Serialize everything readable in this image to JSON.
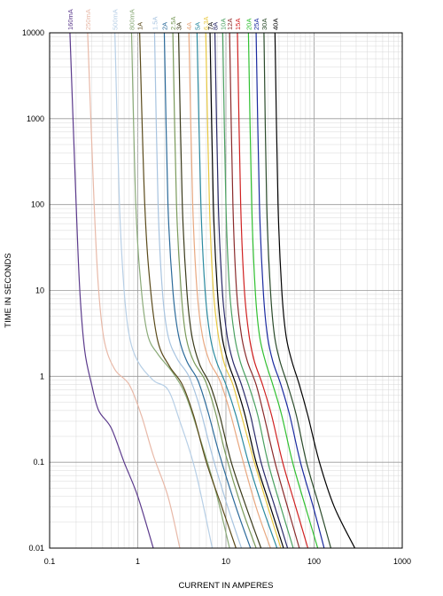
{
  "chart_data": {
    "type": "line",
    "xlabel": "CURRENT IN AMPERES",
    "ylabel": "TIME IN SECONDS",
    "x_scale": "log",
    "y_scale": "log",
    "xlim": [
      0.1,
      1000
    ],
    "ylim": [
      0.01,
      10000
    ],
    "x_ticks": [
      "0.1",
      "1",
      "10",
      "100",
      "1000"
    ],
    "y_ticks": [
      "0.01",
      "0.1",
      "1",
      "10",
      "100",
      "1000",
      "10000"
    ],
    "grid": true,
    "legend": "series labels along top edge",
    "series": [
      {
        "name": "160mA",
        "color": "#5b3a8c",
        "points": [
          [
            0.17,
            10000
          ],
          [
            0.2,
            100
          ],
          [
            0.22,
            10
          ],
          [
            0.25,
            2
          ],
          [
            0.3,
            0.8
          ],
          [
            0.36,
            0.4
          ],
          [
            0.5,
            0.25
          ],
          [
            0.7,
            0.1
          ],
          [
            1.0,
            0.04
          ],
          [
            1.5,
            0.01
          ]
        ]
      },
      {
        "name": "250mA",
        "color": "#e8b9a8",
        "points": [
          [
            0.27,
            10000
          ],
          [
            0.32,
            100
          ],
          [
            0.36,
            10
          ],
          [
            0.42,
            2.5
          ],
          [
            0.55,
            1.2
          ],
          [
            0.8,
            0.8
          ],
          [
            1.1,
            0.35
          ],
          [
            1.5,
            0.12
          ],
          [
            2.2,
            0.04
          ],
          [
            3.0,
            0.01
          ]
        ]
      },
      {
        "name": "500mA",
        "color": "#b7cfe6",
        "points": [
          [
            0.55,
            10000
          ],
          [
            0.62,
            100
          ],
          [
            0.7,
            10
          ],
          [
            0.8,
            3
          ],
          [
            1.0,
            1.5
          ],
          [
            1.5,
            0.9
          ],
          [
            2.2,
            0.7
          ],
          [
            3.0,
            0.3
          ],
          [
            4.5,
            0.08
          ],
          [
            7.0,
            0.01
          ]
        ]
      },
      {
        "name": "800mA",
        "color": "#8aaa78",
        "points": [
          [
            0.85,
            10000
          ],
          [
            0.95,
            100
          ],
          [
            1.1,
            10
          ],
          [
            1.3,
            3
          ],
          [
            1.7,
            1.8
          ],
          [
            2.5,
            1.1
          ],
          [
            3.5,
            0.6
          ],
          [
            5.0,
            0.2
          ],
          [
            7.5,
            0.05
          ],
          [
            11.0,
            0.01
          ]
        ]
      },
      {
        "name": "1A",
        "color": "#5a4a1a",
        "points": [
          [
            1.05,
            10000
          ],
          [
            1.2,
            100
          ],
          [
            1.4,
            10
          ],
          [
            1.7,
            2.5
          ],
          [
            2.3,
            1.3
          ],
          [
            3.2,
            0.8
          ],
          [
            4.3,
            0.35
          ],
          [
            6.0,
            0.1
          ],
          [
            9.0,
            0.03
          ],
          [
            13.0,
            0.01
          ]
        ]
      },
      {
        "name": "1.5A",
        "color": "#a8c4e0",
        "points": [
          [
            1.55,
            10000
          ],
          [
            1.7,
            100
          ],
          [
            1.9,
            10
          ],
          [
            2.2,
            3
          ],
          [
            2.8,
            1.6
          ],
          [
            3.8,
            1.0
          ],
          [
            5.0,
            0.45
          ],
          [
            7.0,
            0.12
          ],
          [
            10.5,
            0.03
          ],
          [
            15.0,
            0.01
          ]
        ]
      },
      {
        "name": "2A",
        "color": "#2b6a9a",
        "points": [
          [
            2.0,
            10000
          ],
          [
            2.2,
            100
          ],
          [
            2.5,
            10
          ],
          [
            2.9,
            3
          ],
          [
            3.6,
            1.5
          ],
          [
            4.8,
            0.9
          ],
          [
            6.2,
            0.4
          ],
          [
            8.5,
            0.12
          ],
          [
            13.0,
            0.03
          ],
          [
            19.0,
            0.01
          ]
        ]
      },
      {
        "name": "2.5A",
        "color": "#7a9a5a",
        "points": [
          [
            2.5,
            10000
          ],
          [
            2.75,
            100
          ],
          [
            3.1,
            10
          ],
          [
            3.5,
            3
          ],
          [
            4.3,
            1.5
          ],
          [
            5.8,
            0.9
          ],
          [
            7.5,
            0.4
          ],
          [
            10.0,
            0.12
          ],
          [
            15.0,
            0.03
          ],
          [
            22.0,
            0.01
          ]
        ]
      },
      {
        "name": "3A",
        "color": "#3a3a1a",
        "points": [
          [
            2.9,
            10000
          ],
          [
            3.2,
            100
          ],
          [
            3.6,
            10
          ],
          [
            4.1,
            3
          ],
          [
            5.0,
            1.4
          ],
          [
            6.6,
            0.8
          ],
          [
            8.5,
            0.35
          ],
          [
            11.5,
            0.1
          ],
          [
            17.0,
            0.03
          ],
          [
            25.0,
            0.01
          ]
        ]
      },
      {
        "name": "4A",
        "color": "#e8a880",
        "points": [
          [
            3.8,
            10000
          ],
          [
            4.2,
            100
          ],
          [
            4.7,
            10
          ],
          [
            5.4,
            3
          ],
          [
            6.5,
            1.5
          ],
          [
            8.5,
            0.9
          ],
          [
            11.0,
            0.4
          ],
          [
            15.0,
            0.12
          ],
          [
            22.0,
            0.03
          ],
          [
            32.0,
            0.01
          ]
        ]
      },
      {
        "name": "5A",
        "color": "#2a8aa0",
        "points": [
          [
            4.7,
            10000
          ],
          [
            5.2,
            100
          ],
          [
            5.8,
            10
          ],
          [
            6.6,
            3
          ],
          [
            7.8,
            1.5
          ],
          [
            10.0,
            0.8
          ],
          [
            13.0,
            0.35
          ],
          [
            18.0,
            0.1
          ],
          [
            26.0,
            0.03
          ],
          [
            38.0,
            0.01
          ]
        ]
      },
      {
        "name": "6.3A",
        "color": "#e8c840",
        "points": [
          [
            5.9,
            10000
          ],
          [
            6.5,
            100
          ],
          [
            7.2,
            10
          ],
          [
            8.2,
            3
          ],
          [
            9.6,
            1.4
          ],
          [
            12.0,
            0.8
          ],
          [
            15.0,
            0.35
          ],
          [
            21.0,
            0.1
          ],
          [
            30.0,
            0.03
          ],
          [
            42.0,
            0.01
          ]
        ]
      },
      {
        "name": "7A",
        "color": "#000000",
        "points": [
          [
            6.6,
            10000
          ],
          [
            7.2,
            100
          ],
          [
            8.0,
            10
          ],
          [
            9.0,
            3
          ],
          [
            10.5,
            1.5
          ],
          [
            13.0,
            0.8
          ],
          [
            16.5,
            0.35
          ],
          [
            22.0,
            0.1
          ],
          [
            32.0,
            0.03
          ],
          [
            45.0,
            0.01
          ]
        ]
      },
      {
        "name": "8A",
        "color": "#2a2a6a",
        "points": [
          [
            7.5,
            10000
          ],
          [
            8.2,
            100
          ],
          [
            9.1,
            10
          ],
          [
            10.3,
            3
          ],
          [
            12.0,
            1.5
          ],
          [
            15.0,
            0.8
          ],
          [
            19.0,
            0.35
          ],
          [
            25.0,
            0.1
          ],
          [
            36.0,
            0.03
          ],
          [
            50.0,
            0.01
          ]
        ]
      },
      {
        "name": "10A",
        "color": "#4aa060",
        "points": [
          [
            9.2,
            10000
          ],
          [
            10.0,
            100
          ],
          [
            11.0,
            10
          ],
          [
            12.5,
            3
          ],
          [
            14.5,
            1.5
          ],
          [
            18.0,
            0.8
          ],
          [
            23.0,
            0.35
          ],
          [
            30.0,
            0.1
          ],
          [
            42.0,
            0.03
          ],
          [
            58.0,
            0.01
          ]
        ]
      },
      {
        "name": "12A",
        "color": "#8a2a2a",
        "points": [
          [
            11.0,
            10000
          ],
          [
            12.0,
            100
          ],
          [
            13.2,
            10
          ],
          [
            15.0,
            3
          ],
          [
            17.5,
            1.5
          ],
          [
            22.0,
            0.8
          ],
          [
            27.0,
            0.35
          ],
          [
            36.0,
            0.1
          ],
          [
            50.0,
            0.03
          ],
          [
            68.0,
            0.01
          ]
        ]
      },
      {
        "name": "15A",
        "color": "#d02020",
        "points": [
          [
            13.5,
            10000
          ],
          [
            14.7,
            100
          ],
          [
            16.2,
            10
          ],
          [
            18.3,
            3
          ],
          [
            21.0,
            1.5
          ],
          [
            26.0,
            0.8
          ],
          [
            33.0,
            0.35
          ],
          [
            44.0,
            0.1
          ],
          [
            62.0,
            0.03
          ],
          [
            85.0,
            0.01
          ]
        ]
      },
      {
        "name": "20A",
        "color": "#30c030",
        "points": [
          [
            18.0,
            10000
          ],
          [
            19.6,
            100
          ],
          [
            21.5,
            10
          ],
          [
            24.0,
            3
          ],
          [
            28.0,
            1.5
          ],
          [
            34.0,
            0.8
          ],
          [
            43.0,
            0.35
          ],
          [
            57.0,
            0.1
          ],
          [
            80.0,
            0.03
          ],
          [
            110.0,
            0.01
          ]
        ]
      },
      {
        "name": "25A",
        "color": "#1a2aa0",
        "points": [
          [
            22.0,
            10000
          ],
          [
            24.0,
            100
          ],
          [
            26.5,
            10
          ],
          [
            29.5,
            3
          ],
          [
            34.0,
            1.5
          ],
          [
            42.0,
            0.8
          ],
          [
            53.0,
            0.35
          ],
          [
            70.0,
            0.1
          ],
          [
            98.0,
            0.03
          ],
          [
            130.0,
            0.01
          ]
        ]
      },
      {
        "name": "30A",
        "color": "#2a4a2a",
        "points": [
          [
            27.0,
            10000
          ],
          [
            29.0,
            100
          ],
          [
            32.0,
            10
          ],
          [
            35.5,
            3
          ],
          [
            41.0,
            1.5
          ],
          [
            50.0,
            0.8
          ],
          [
            63.0,
            0.35
          ],
          [
            82.0,
            0.1
          ],
          [
            115.0,
            0.03
          ],
          [
            155.0,
            0.01
          ]
        ]
      },
      {
        "name": "40A",
        "color": "#000000",
        "points": [
          [
            36.0,
            10000
          ],
          [
            39.0,
            100
          ],
          [
            43.0,
            10
          ],
          [
            48.0,
            3
          ],
          [
            56.0,
            1.5
          ],
          [
            68.0,
            0.8
          ],
          [
            85.0,
            0.35
          ],
          [
            115.0,
            0.1
          ],
          [
            170.0,
            0.03
          ],
          [
            290.0,
            0.01
          ]
        ]
      }
    ]
  }
}
